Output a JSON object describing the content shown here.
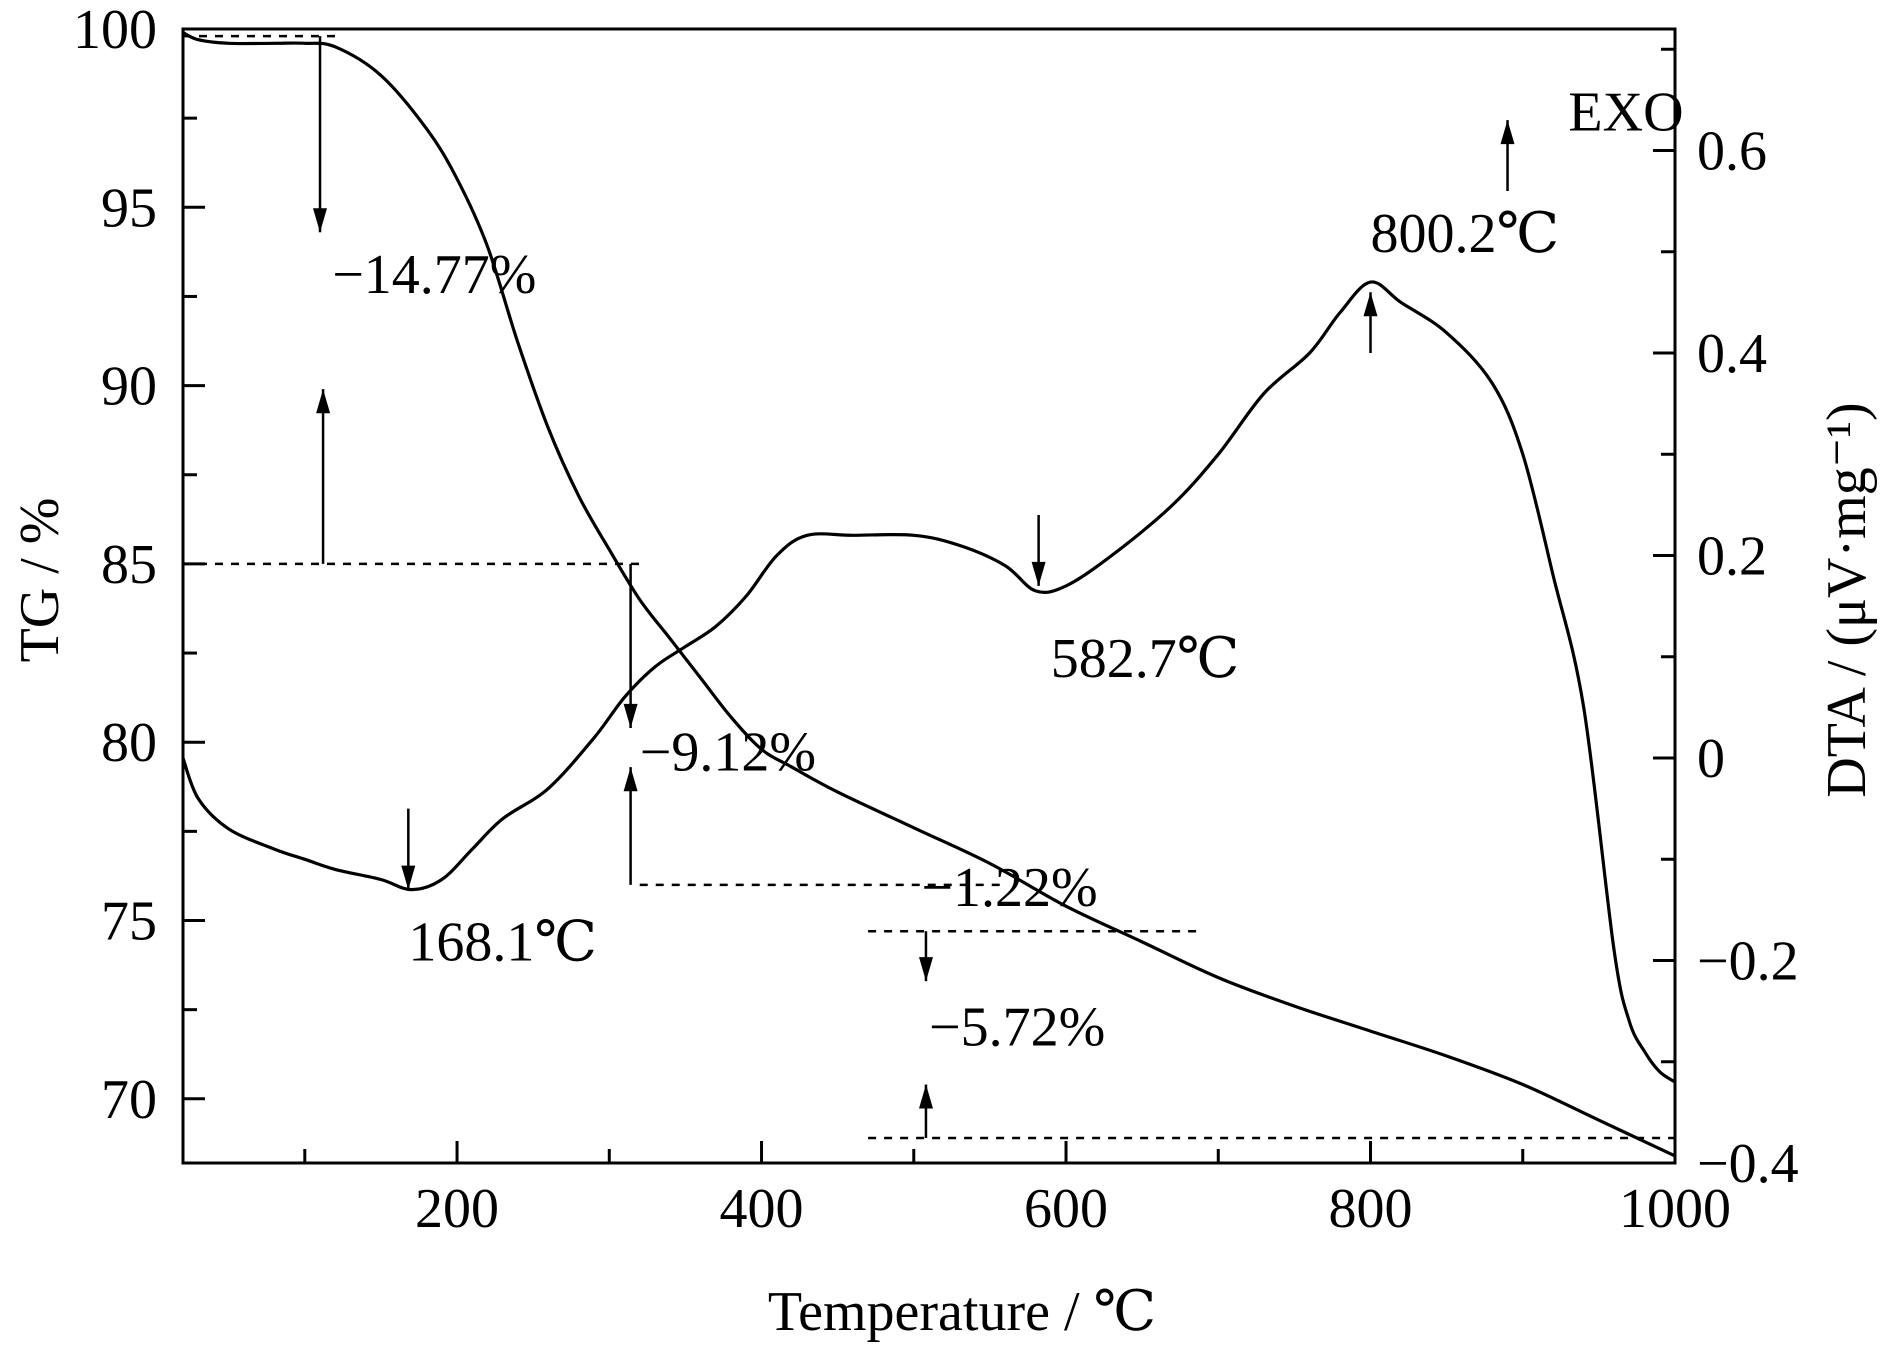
{
  "chart_data": {
    "type": "line",
    "xlabel": "Temperature / ℃",
    "ylabel_left": "TG / %",
    "ylabel_right": "DTA / (μV·mg⁻¹)",
    "xlim": [
      20,
      1000
    ],
    "ylim_left": [
      68.2,
      100
    ],
    "ylim_right": [
      -0.4,
      0.72
    ],
    "x_ticks": [
      200,
      400,
      600,
      800,
      1000
    ],
    "x_minor_ticks": [
      100,
      300,
      500,
      700,
      900
    ],
    "left_ticks": [
      70,
      75,
      80,
      85,
      90,
      95,
      100
    ],
    "left_minor_ticks": [
      72.5,
      77.5,
      82.5,
      87.5,
      92.5,
      97.5
    ],
    "right_ticks": [
      -0.4,
      -0.2,
      0,
      0.2,
      0.4,
      0.6
    ],
    "right_tick_labels": [
      "−0.4",
      "−0.2",
      "0",
      "0.2",
      "0.4",
      "0.6"
    ],
    "right_minor_ticks": [
      -0.3,
      -0.1,
      0.1,
      0.3,
      0.5,
      0.7
    ],
    "grid": false,
    "legend": "none",
    "series": [
      {
        "axis": "left",
        "x": [
          20,
          30,
          50,
          80,
          100,
          120,
          150,
          180,
          200,
          220,
          240,
          260,
          280,
          300,
          320,
          340,
          360,
          380,
          400,
          420,
          450,
          500,
          550,
          600,
          650,
          700,
          750,
          800,
          850,
          900,
          950,
          1000
        ],
        "values": [
          99.9,
          99.7,
          99.6,
          99.6,
          99.6,
          99.5,
          98.7,
          97.2,
          95.8,
          93.9,
          91.2,
          88.8,
          86.9,
          85.4,
          84.0,
          82.9,
          81.8,
          80.7,
          79.8,
          79.3,
          78.6,
          77.6,
          76.6,
          75.4,
          74.4,
          73.4,
          72.6,
          71.9,
          71.2,
          70.4,
          69.4,
          68.4
        ]
      },
      {
        "axis": "right",
        "x": [
          20,
          30,
          50,
          80,
          100,
          120,
          150,
          170,
          190,
          210,
          230,
          260,
          290,
          310,
          330,
          350,
          370,
          390,
          410,
          430,
          460,
          500,
          530,
          560,
          580,
          600,
          630,
          670,
          700,
          730,
          760,
          780,
          800,
          820,
          850,
          880,
          900,
          920,
          940,
          960,
          970,
          980,
          990,
          1000
        ],
        "values": [
          0.0,
          -0.04,
          -0.07,
          -0.09,
          -0.1,
          -0.11,
          -0.12,
          -0.13,
          -0.12,
          -0.09,
          -0.06,
          -0.03,
          0.02,
          0.06,
          0.09,
          0.11,
          0.13,
          0.16,
          0.2,
          0.22,
          0.22,
          0.22,
          0.21,
          0.19,
          0.165,
          0.17,
          0.2,
          0.25,
          0.3,
          0.36,
          0.4,
          0.44,
          0.47,
          0.45,
          0.42,
          0.37,
          0.3,
          0.18,
          0.05,
          -0.19,
          -0.26,
          -0.29,
          -0.31,
          -0.32
        ]
      }
    ],
    "reference_lines": [
      {
        "axis": "left",
        "y": 99.8,
        "x_range": [
          20,
          120
        ]
      },
      {
        "axis": "left",
        "y": 85.0,
        "x_range": [
          20,
          320
        ]
      },
      {
        "axis": "left",
        "y": 76.0,
        "x_range": [
          320,
          560
        ]
      },
      {
        "axis": "left",
        "y": 74.7,
        "x_range": [
          470,
          690
        ]
      },
      {
        "axis": "left",
        "y": 68.9,
        "x_range": [
          470,
          1000
        ]
      }
    ],
    "arrows": [
      {
        "axis": "left",
        "x": 110,
        "from": 99.8,
        "to": 94.3
      },
      {
        "axis": "left",
        "x": 112,
        "from": 85.0,
        "to": 89.9
      },
      {
        "axis": "left",
        "x": 314,
        "from": 85.0,
        "to": 80.4
      },
      {
        "axis": "left",
        "x": 314,
        "from": 76.0,
        "to": 79.3
      },
      {
        "axis": "left",
        "x": 508,
        "from": 74.7,
        "to": 73.3
      },
      {
        "axis": "left",
        "x": 508,
        "from": 68.9,
        "to": 70.4
      },
      {
        "axis": "right",
        "x": 168,
        "from": -0.05,
        "to": -0.13
      },
      {
        "axis": "right",
        "x": 582,
        "from": 0.24,
        "to": 0.17
      },
      {
        "axis": "right",
        "x": 800,
        "from": 0.4,
        "to": 0.46
      },
      {
        "axis": "right",
        "x": 890,
        "from": 0.56,
        "to": 0.63
      }
    ],
    "annotations": [
      {
        "text": "−14.77%",
        "axis": "left",
        "x": 118,
        "y": 92.6
      },
      {
        "text": "−9.12%",
        "axis": "left",
        "x": 320,
        "y": 79.2
      },
      {
        "text": "−1.22%",
        "axis": "left",
        "x": 505,
        "y": 75.4
      },
      {
        "text": "−5.72%",
        "axis": "left",
        "x": 510,
        "y": 71.5
      },
      {
        "text": "168.1℃",
        "axis": "right",
        "x": 168,
        "y": -0.2
      },
      {
        "text": "582.7℃",
        "axis": "right",
        "x": 590,
        "y": 0.08
      },
      {
        "text": "800.2℃",
        "axis": "right",
        "x": 800,
        "y": 0.5
      },
      {
        "text": "EXO",
        "axis": "right",
        "x": 930,
        "y": 0.62
      }
    ]
  }
}
